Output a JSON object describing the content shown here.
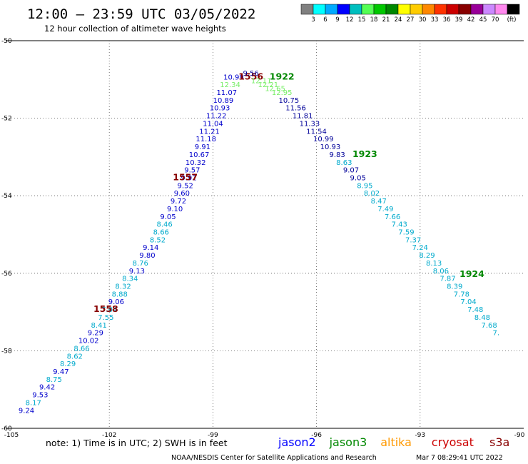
{
  "title": "12:00 – 23:59 UTC 03/05/2022",
  "subtitle": "12 hour collection of altimeter wave heights",
  "colorbar": {
    "colors": [
      "#808080",
      "#00ffff",
      "#00aaff",
      "#0000ff",
      "#00bfbf",
      "#55ff55",
      "#00c800",
      "#008800",
      "#ffff00",
      "#ffcc00",
      "#ff8800",
      "#ff3300",
      "#cc0000",
      "#880000",
      "#990099",
      "#cc88ff",
      "#ff88ee",
      "#000000"
    ],
    "labels": [
      "3",
      "6",
      "9",
      "12",
      "15",
      "18",
      "21",
      "24",
      "27",
      "30",
      "33",
      "36",
      "39",
      "42",
      "45",
      "70"
    ],
    "unit": "(ft)"
  },
  "map": {
    "lon_range": [
      -105,
      -90
    ],
    "lat_range": [
      -60,
      -50
    ],
    "x_ticks": [
      -105,
      -102,
      -99,
      -96,
      -93,
      -90
    ],
    "y_ticks": [
      -50,
      -52,
      -54,
      -56,
      -58,
      -60
    ]
  },
  "swh_colors": {
    "c1": "#000099",
    "c2": "#0000cc",
    "c3": "#00aacc",
    "c4": "#77ee66"
  },
  "tracks": [
    {
      "points": [
        [
          "9.24",
          -104.4,
          -59.6,
          "c2"
        ],
        [
          "8.17",
          -104.2,
          -59.4,
          "c3"
        ],
        [
          "9.53",
          -104.0,
          -59.2,
          "c2"
        ],
        [
          "9.42",
          -103.8,
          -59.0,
          "c2"
        ],
        [
          "8.75",
          -103.6,
          -58.8,
          "c3"
        ],
        [
          "9.47",
          -103.4,
          -58.6,
          "c2"
        ],
        [
          "8.29",
          -103.2,
          -58.4,
          "c3"
        ],
        [
          "8.62",
          -103.0,
          -58.2,
          "c3"
        ],
        [
          "8.66",
          -102.8,
          -58.0,
          "c3"
        ],
        [
          "10.02",
          -102.6,
          -57.8,
          "c2"
        ],
        [
          "9.29",
          -102.4,
          -57.6,
          "c2"
        ],
        [
          "8.41",
          -102.3,
          -57.4,
          "c3"
        ],
        [
          "7.55",
          -102.1,
          -57.2,
          "c3"
        ],
        [
          "7.04",
          -102.0,
          -57.0,
          "c3"
        ],
        [
          "9.06",
          -101.8,
          -56.8,
          "c2"
        ],
        [
          "8.88",
          -101.7,
          -56.6,
          "c3"
        ],
        [
          "8.32",
          -101.6,
          -56.4,
          "c3"
        ],
        [
          "8.34",
          -101.4,
          -56.2,
          "c3"
        ],
        [
          "9.13",
          -101.2,
          -56.0,
          "c2"
        ],
        [
          "8.76",
          -101.1,
          -55.8,
          "c3"
        ],
        [
          "9.80",
          -100.9,
          -55.6,
          "c2"
        ],
        [
          "9.14",
          -100.8,
          -55.4,
          "c2"
        ],
        [
          "8.52",
          -100.6,
          -55.2,
          "c3"
        ],
        [
          "8.66",
          -100.5,
          -55.0,
          "c3"
        ],
        [
          "8.46",
          -100.4,
          -54.8,
          "c3"
        ],
        [
          "9.05",
          -100.3,
          -54.6,
          "c2"
        ],
        [
          "9.10",
          -100.1,
          -54.4,
          "c2"
        ],
        [
          "9.72",
          -100.0,
          -54.2,
          "c2"
        ],
        [
          "9.60",
          -99.9,
          -54.0,
          "c2"
        ],
        [
          "9.52",
          -99.8,
          -53.8,
          "c2"
        ],
        [
          "9.92",
          -99.7,
          -53.6,
          "c2"
        ],
        [
          "9.57",
          -99.6,
          -53.4,
          "c2"
        ],
        [
          "10.32",
          -99.5,
          -53.2,
          "c2"
        ],
        [
          "10.67",
          -99.4,
          -53.0,
          "c2"
        ],
        [
          "9.91",
          -99.3,
          -52.8,
          "c2"
        ],
        [
          "11.18",
          -99.2,
          -52.6,
          "c2"
        ],
        [
          "11.21",
          -99.1,
          -52.4,
          "c2"
        ],
        [
          "11.04",
          -99.0,
          -52.2,
          "c2"
        ],
        [
          "11.22",
          -98.9,
          -52.0,
          "c2"
        ],
        [
          "10.93",
          -98.8,
          -51.8,
          "c2"
        ],
        [
          "10.89",
          -98.7,
          -51.6,
          "c2"
        ],
        [
          "11.07",
          -98.6,
          -51.4,
          "c2"
        ],
        [
          "12.34",
          -98.5,
          -51.2,
          "c4"
        ],
        [
          "10.99",
          -98.4,
          -51.0,
          "c2"
        ]
      ],
      "labels": [
        [
          "1556",
          -97.9,
          -51.0,
          "#880000"
        ],
        [
          "1557",
          -99.8,
          -53.6,
          "#880000"
        ],
        [
          "1558",
          -102.1,
          -57.0,
          "#880000"
        ]
      ]
    },
    {
      "points": [
        [
          "12.11",
          -97.6,
          -51.1,
          "c4"
        ],
        [
          "12.21",
          -97.4,
          -51.2,
          "c4"
        ],
        [
          "12.65",
          -97.2,
          -51.3,
          "c4"
        ],
        [
          "12.95",
          -97.0,
          -51.4,
          "c4"
        ],
        [
          "10.75",
          -96.8,
          -51.6,
          "c1"
        ],
        [
          "11.56",
          -96.6,
          -51.8,
          "c1"
        ],
        [
          "11.81",
          -96.4,
          -52.0,
          "c1"
        ],
        [
          "11.33",
          -96.2,
          -52.2,
          "c1"
        ],
        [
          "11.54",
          -96.0,
          -52.4,
          "c1"
        ],
        [
          "10.99",
          -95.8,
          -52.6,
          "c1"
        ],
        [
          "10.93",
          -95.6,
          -52.8,
          "c1"
        ],
        [
          "9.83",
          -95.4,
          -53.0,
          "c1"
        ],
        [
          "8.63",
          -95.2,
          -53.2,
          "c3"
        ],
        [
          "9.07",
          -95.0,
          -53.4,
          "c1"
        ],
        [
          "9.05",
          -94.8,
          -53.6,
          "c1"
        ],
        [
          "8.95",
          -94.6,
          -53.8,
          "c3"
        ],
        [
          "8.02",
          -94.4,
          -54.0,
          "c3"
        ],
        [
          "8.47",
          -94.2,
          -54.2,
          "c3"
        ],
        [
          "7.49",
          -94.0,
          -54.4,
          "c3"
        ],
        [
          "7.66",
          -93.8,
          -54.6,
          "c3"
        ],
        [
          "7.43",
          -93.6,
          -54.8,
          "c3"
        ],
        [
          "7.59",
          -93.4,
          -55.0,
          "c3"
        ],
        [
          "7.37",
          -93.2,
          -55.2,
          "c3"
        ],
        [
          "7.24",
          -93.0,
          -55.4,
          "c3"
        ],
        [
          "8.29",
          -92.8,
          -55.6,
          "c3"
        ],
        [
          "8.13",
          -92.6,
          -55.8,
          "c3"
        ],
        [
          "8.06",
          -92.4,
          -56.0,
          "c3"
        ],
        [
          "7.87",
          -92.2,
          -56.2,
          "c3"
        ],
        [
          "8.39",
          -92.0,
          -56.4,
          "c3"
        ],
        [
          "7.78",
          -91.8,
          -56.6,
          "c3"
        ],
        [
          "7.04",
          -91.6,
          -56.8,
          "c3"
        ],
        [
          "7.48",
          -91.4,
          -57.0,
          "c3"
        ],
        [
          "8.48",
          -91.2,
          -57.2,
          "c3"
        ],
        [
          "7.68",
          -91.0,
          -57.4,
          "c3"
        ],
        [
          "7.",
          -90.8,
          -57.6,
          "c3"
        ],
        [
          "9.56",
          -97.9,
          -50.9,
          "c1"
        ]
      ],
      "labels": [
        [
          "1922",
          -97.0,
          -51.0,
          "#008800"
        ],
        [
          "1923",
          -94.6,
          -53.0,
          "#008800"
        ],
        [
          "1924",
          -91.5,
          -56.1,
          "#008800"
        ]
      ]
    }
  ],
  "note": "note:  1) Time is in UTC;  2) SWH is in feet",
  "satellites": [
    {
      "name": "jason2",
      "color": "#0000ff"
    },
    {
      "name": "jason3",
      "color": "#008800"
    },
    {
      "name": "altika",
      "color": "#ff9900"
    },
    {
      "name": "cryosat",
      "color": "#cc0000"
    },
    {
      "name": "s3a",
      "color": "#880000"
    }
  ],
  "credit_left": "NOAA/NESDIS Center for Satellite Applications and Research",
  "credit_right": "Mar  7 08:29:41 UTC 2022"
}
